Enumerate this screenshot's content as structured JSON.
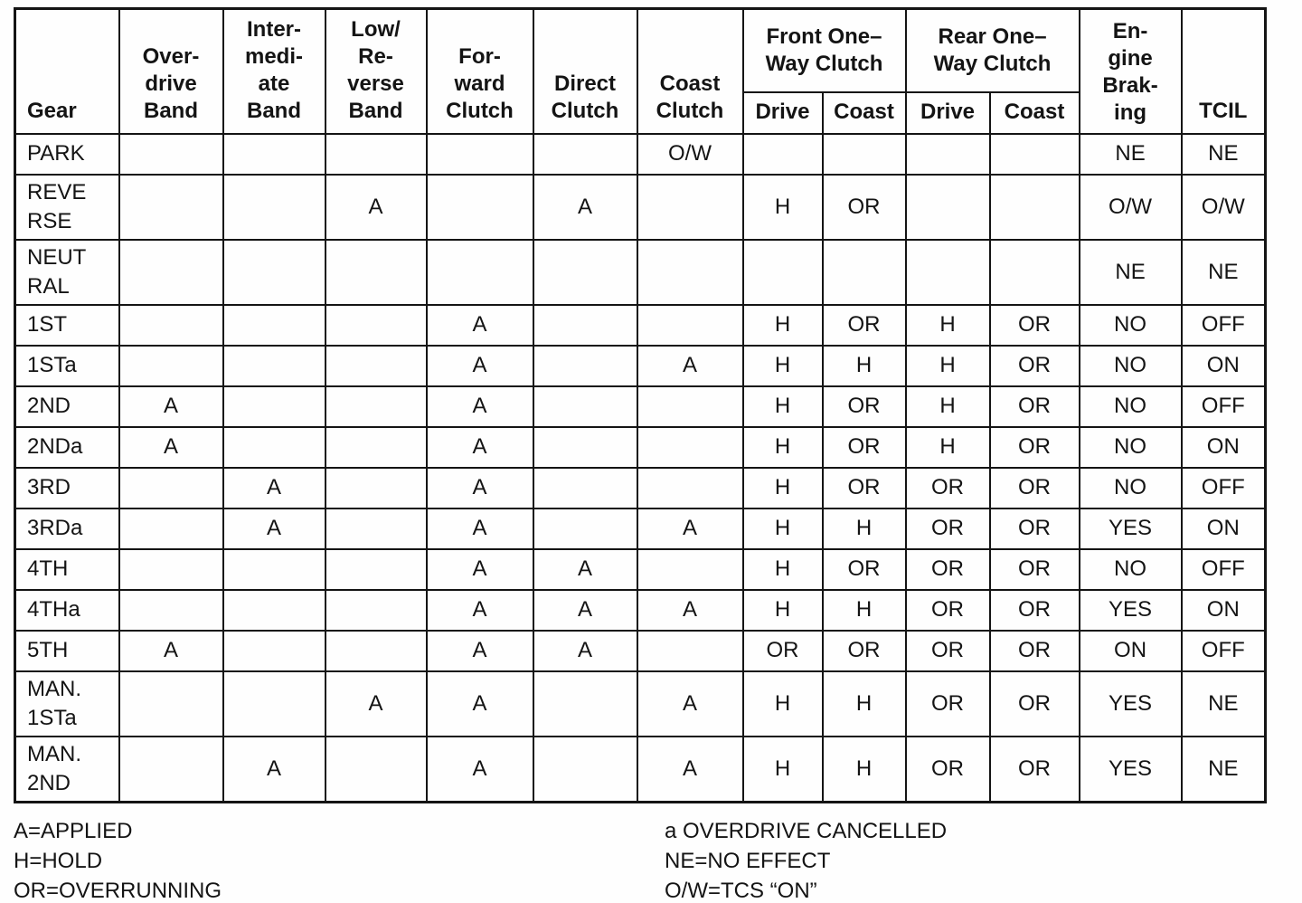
{
  "table": {
    "header": {
      "top": [
        {
          "label": "Gear",
          "rowspan": 2
        },
        {
          "label": "Over-\ndrive\nBand",
          "rowspan": 2
        },
        {
          "label": "Inter-\nmedi-\nate\nBand",
          "rowspan": 2
        },
        {
          "label": "Low/\nRe-\nverse\nBand",
          "rowspan": 2
        },
        {
          "label": "For-\nward\nClutch",
          "rowspan": 2
        },
        {
          "label": "Direct\nClutch",
          "rowspan": 2
        },
        {
          "label": "Coast\nClutch",
          "rowspan": 2
        },
        {
          "label": "Front One–\nWay Clutch",
          "colspan": 2
        },
        {
          "label": "Rear One–\nWay Clutch",
          "colspan": 2
        },
        {
          "label": "En-\ngine\nBrak-\ning",
          "rowspan": 2
        },
        {
          "label": "TCIL",
          "rowspan": 2
        }
      ],
      "sub": [
        "Drive",
        "Coast",
        "Drive",
        "Coast"
      ]
    },
    "rows": [
      {
        "gear": "PARK",
        "cells": [
          "",
          "",
          "",
          "",
          "",
          "O/W",
          "",
          "",
          "",
          "",
          "NE",
          "NE"
        ]
      },
      {
        "gear": "REVE\nRSE",
        "cells": [
          "",
          "",
          "A",
          "",
          "A",
          "",
          "H",
          "OR",
          "",
          "",
          "O/W",
          "O/W"
        ]
      },
      {
        "gear": "NEUT\nRAL",
        "cells": [
          "",
          "",
          "",
          "",
          "",
          "",
          "",
          "",
          "",
          "",
          "NE",
          "NE"
        ]
      },
      {
        "gear": "1ST",
        "cells": [
          "",
          "",
          "",
          "A",
          "",
          "",
          "H",
          "OR",
          "H",
          "OR",
          "NO",
          "OFF"
        ]
      },
      {
        "gear": "1STa",
        "cells": [
          "",
          "",
          "",
          "A",
          "",
          "A",
          "H",
          "H",
          "H",
          "OR",
          "NO",
          "ON"
        ]
      },
      {
        "gear": "2ND",
        "cells": [
          "A",
          "",
          "",
          "A",
          "",
          "",
          "H",
          "OR",
          "H",
          "OR",
          "NO",
          "OFF"
        ]
      },
      {
        "gear": "2NDa",
        "cells": [
          "A",
          "",
          "",
          "A",
          "",
          "",
          "H",
          "OR",
          "H",
          "OR",
          "NO",
          "ON"
        ]
      },
      {
        "gear": "3RD",
        "cells": [
          "",
          "A",
          "",
          "A",
          "",
          "",
          "H",
          "OR",
          "OR",
          "OR",
          "NO",
          "OFF"
        ]
      },
      {
        "gear": "3RDa",
        "cells": [
          "",
          "A",
          "",
          "A",
          "",
          "A",
          "H",
          "H",
          "OR",
          "OR",
          "YES",
          "ON"
        ]
      },
      {
        "gear": "4TH",
        "cells": [
          "",
          "",
          "",
          "A",
          "A",
          "",
          "H",
          "OR",
          "OR",
          "OR",
          "NO",
          "OFF"
        ]
      },
      {
        "gear": "4THa",
        "cells": [
          "",
          "",
          "",
          "A",
          "A",
          "A",
          "H",
          "H",
          "OR",
          "OR",
          "YES",
          "ON"
        ]
      },
      {
        "gear": "5TH",
        "cells": [
          "A",
          "",
          "",
          "A",
          "A",
          "",
          "OR",
          "OR",
          "OR",
          "OR",
          "ON",
          "OFF"
        ]
      },
      {
        "gear": "MAN.\n1STa",
        "cells": [
          "",
          "",
          "A",
          "A",
          "",
          "A",
          "H",
          "H",
          "OR",
          "OR",
          "YES",
          "NE"
        ]
      },
      {
        "gear": "MAN.\n2ND",
        "cells": [
          "",
          "A",
          "",
          "A",
          "",
          "A",
          "H",
          "H",
          "OR",
          "OR",
          "YES",
          "NE"
        ]
      }
    ]
  },
  "legend": {
    "left": [
      "A=APPLIED",
      "H=HOLD",
      "OR=OVERRUNNING"
    ],
    "right": [
      "a OVERDRIVE CANCELLED",
      "NE=NO EFFECT",
      "O/W=TCS “ON”"
    ]
  },
  "colors": {
    "ink": "#141414",
    "paper": "#fefefe"
  }
}
